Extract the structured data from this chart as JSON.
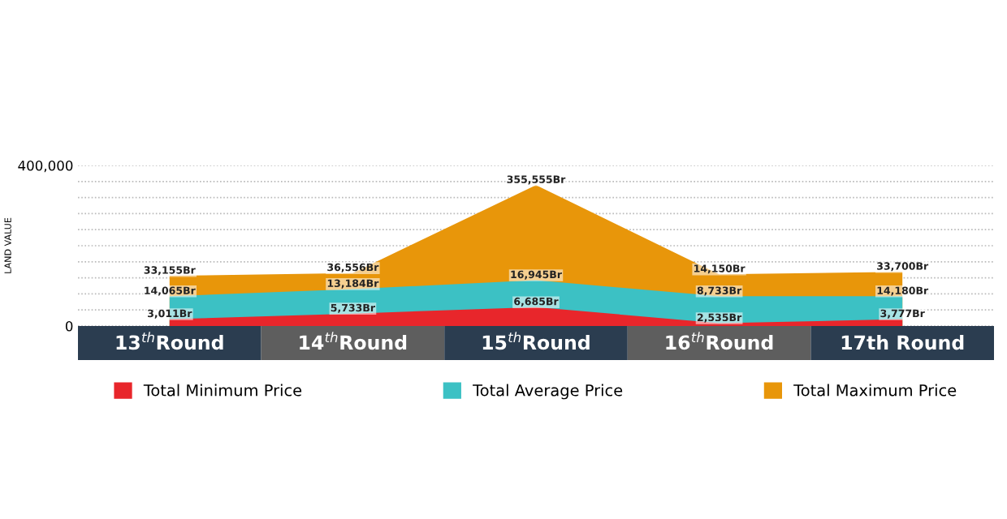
{
  "chart_data": {
    "type": "area",
    "ylabel": "LAND VALUE",
    "categories": [
      "13$^{th}$Round",
      "14$^{th}$Round",
      "15$^{th}$Round",
      "16$^{th}$Round",
      "17th Round"
    ],
    "series": [
      {
        "name": "Total Maximum Price",
        "color": "#e8960a",
        "values": [
          125000,
          132000,
          351000,
          129000,
          135000
        ]
      },
      {
        "name": "Total Average Price",
        "color": "#3cc1c4",
        "values": [
          74000,
          92000,
          114000,
          74000,
          74000
        ]
      },
      {
        "name": "Total Minimum Price",
        "color": "#e8262b",
        "values": [
          17000,
          31000,
          47000,
          7000,
          17000
        ]
      }
    ],
    "annotations": [
      {
        "text": "33,155Br",
        "x": "13$^{th}$Round",
        "y": 125000
      },
      {
        "text": "36,556Br",
        "x": "14$^{th}$Round",
        "y": 132000
      },
      {
        "text": "355,555Br",
        "x": "15$^{th}$Round",
        "y": 351000
      },
      {
        "text": "14,150Br",
        "x": "16$^{th}$Round",
        "y": 129000
      },
      {
        "text": "33,700Br",
        "x": "17th Round",
        "y": 135000
      },
      {
        "text": "14,065Br",
        "x": "13$^{th}$Round",
        "y": 74000
      },
      {
        "text": "13,184Br",
        "x": "14$^{th}$Round",
        "y": 92000
      },
      {
        "text": "16,945Br",
        "x": "15$^{th}$Round",
        "y": 114000
      },
      {
        "text": "8,733Br",
        "x": "16$^{th}$Round",
        "y": 74000
      },
      {
        "text": "14,180Br",
        "x": "17th Round",
        "y": 74000
      },
      {
        "text": "3,011Br",
        "x": "13$^{th}$Round",
        "y": 17000
      },
      {
        "text": "5,733Br",
        "x": "14$^{th}$Round",
        "y": 31000
      },
      {
        "text": "6,685Br",
        "x": "15$^{th}$Round",
        "y": 47000
      },
      {
        "text": "2,535Br",
        "x": "16$^{th}$Round",
        "y": 7000
      },
      {
        "text": "3,777Br",
        "x": "17th Round",
        "y": 17000
      }
    ],
    "ylim": [
      0,
      400000
    ],
    "yticks": [
      0,
      {
        "value": 40000,
        "label": null
      },
      {
        "value": 80000,
        "label": null
      },
      {
        "value": 120000,
        "label": null
      },
      {
        "value": 160000,
        "label": null
      },
      {
        "value": 200000,
        "label": null
      },
      {
        "value": 240000,
        "label": null
      },
      {
        "value": 280000,
        "label": null
      },
      {
        "value": 320000,
        "label": null
      },
      {
        "value": 360000,
        "label": null
      },
      {
        "value": 400000,
        "label": "400,000"
      }
    ],
    "grid": "y",
    "legend": "bottom"
  }
}
